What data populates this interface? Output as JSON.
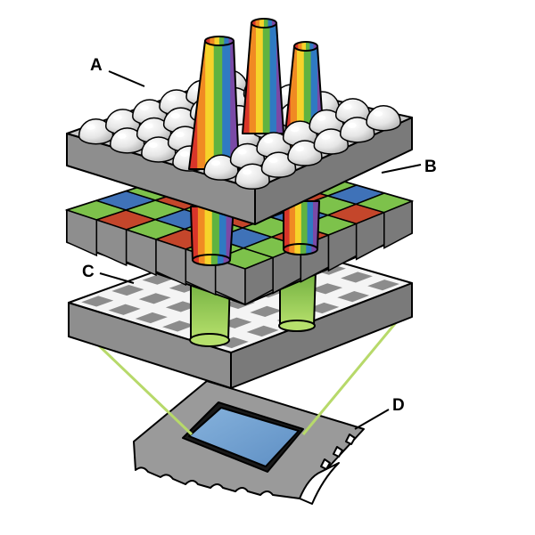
{
  "labels": {
    "a": "A",
    "b": "B",
    "c": "C",
    "d": "D"
  },
  "colors": {
    "layer_top": "#c9c9c9",
    "layer_side": "#8e8e8e",
    "layer_front": "#a9a9a9",
    "filter_green": "#7dc24b",
    "filter_red": "#c4462b",
    "filter_blue": "#3f72b8",
    "photodiode_cell": "#8c8c8c",
    "photodiode_grid": "#ffffff",
    "light_green": "#9fd45a",
    "sensor_chip": "#6f9fd0",
    "package": "#9a9a9a",
    "microlens": "#f1f1f1",
    "guide_lines": "#b7d96a"
  },
  "rainbow_colors": [
    "#d8352a",
    "#f08a23",
    "#f6d32a",
    "#5fb340",
    "#2f7ac2",
    "#7a4aa6"
  ],
  "icons": {
    "microlens": "dome-lens",
    "light_beam": "rainbow-cone",
    "filtered_light": "green-cone"
  }
}
